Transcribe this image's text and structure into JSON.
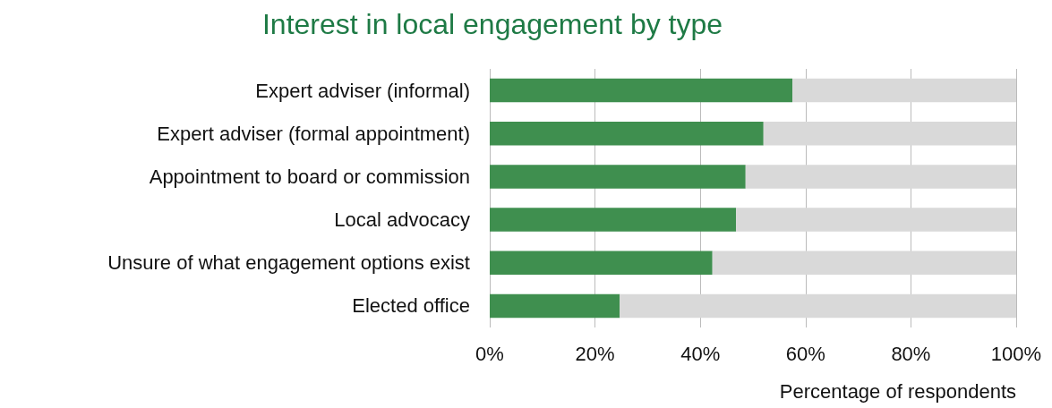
{
  "chart_data": {
    "type": "bar",
    "orientation": "horizontal",
    "stacked": true,
    "title": "Interest in local engagement by type",
    "xlabel": "Percentage of respondents",
    "categories": [
      "Expert adviser (informal)",
      "Expert adviser (formal appointment)",
      "Appointment to board or commission",
      "Local advocacy",
      "Unsure of what engagement options exist",
      "Elected office"
    ],
    "series": [
      {
        "color": "#3f8f4f",
        "values": [
          57.5,
          52,
          48.6,
          46.8,
          42.3,
          24.7
        ]
      },
      {
        "color": "#d9d9d9",
        "values": [
          42.5,
          48,
          51.4,
          53.2,
          57.7,
          75.3
        ]
      }
    ],
    "xlim": [
      0,
      100
    ],
    "xticks": [
      {
        "value": 0,
        "label": "0%"
      },
      {
        "value": 20,
        "label": "20%"
      },
      {
        "value": 40,
        "label": "40%"
      },
      {
        "value": 60,
        "label": "60%"
      },
      {
        "value": 80,
        "label": "80%"
      },
      {
        "value": 100,
        "label": "100%"
      }
    ],
    "grid": "x"
  }
}
